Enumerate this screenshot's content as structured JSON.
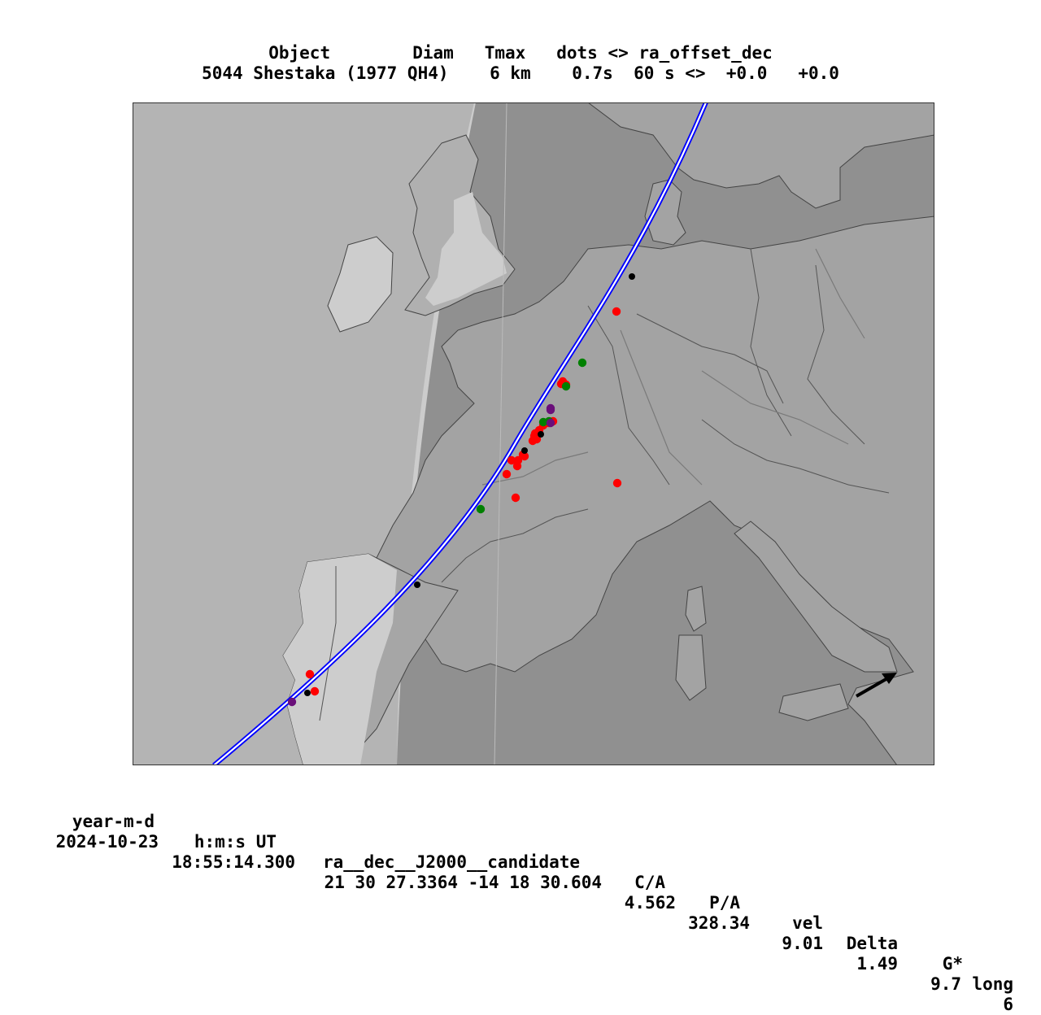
{
  "header": {
    "labels_line": "Object        Diam   Tmax   dots <> ra_offset_dec",
    "values_line": "5044 Shestaka (1977 QH4)    6 km    0.7s  60 s <>  +0.0   +0.0"
  },
  "footer": {
    "columns": [
      "year-m-d",
      "h:m:s UT",
      "ra__dec__J2000__candidate",
      "C/A",
      "P/A",
      "vel",
      "Delta",
      "G*",
      "long"
    ],
    "values": [
      "2024-10-23",
      "18:55:14.300",
      "21 30 27.3364 -14 18 30.604",
      "4.562",
      "328.34",
      "9.01",
      "1.49",
      "9.7",
      "6"
    ]
  },
  "map": {
    "colors": {
      "ocean_day": "#b4b4b4",
      "ocean_twilight": "#cccccc",
      "night": "#909090",
      "land": "#a6a6a6",
      "land_twilight": "#cdcdcd",
      "border": "#444444",
      "river": "#7a7a7a",
      "path": "#0000ff",
      "observer_red": "#ff0000",
      "observer_green": "#008000",
      "observer_purple": "#6a0f7a",
      "minute_dot": "#000000"
    },
    "motion_arrow": "direction-arrow",
    "marker_count": {
      "red": 22,
      "green": 5,
      "purple": 4,
      "minute_dots": 5
    }
  }
}
